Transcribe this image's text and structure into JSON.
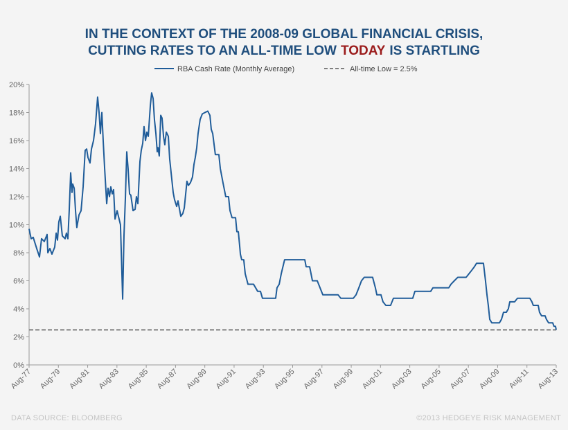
{
  "chart_data": {
    "type": "line",
    "title": {
      "line1": "IN THE CONTEXT OF THE 2008-09 GLOBAL FINANCIAL CRISIS,",
      "line2": [
        "CUTTING RATES TO AN ALL-TIME LOW",
        "TODAY",
        "IS STARTLING"
      ]
    },
    "series": [
      {
        "name": "RBA Cash Rate (Monthly Average)",
        "color": "#1f5c99",
        "x": [
          1977.58,
          1977.72,
          1977.86,
          1978.1,
          1978.29,
          1978.43,
          1978.62,
          1978.81,
          1978.86,
          1979.0,
          1979.14,
          1979.33,
          1979.43,
          1979.52,
          1979.61,
          1979.71,
          1979.85,
          1980.04,
          1980.13,
          1980.23,
          1980.32,
          1980.42,
          1980.51,
          1980.56,
          1980.66,
          1980.75,
          1980.84,
          1980.99,
          1981.13,
          1981.27,
          1981.41,
          1981.51,
          1981.6,
          1981.74,
          1981.84,
          1981.98,
          1982.12,
          1982.26,
          1982.36,
          1982.45,
          1982.55,
          1982.64,
          1982.74,
          1982.88,
          1982.97,
          1983.07,
          1983.16,
          1983.26,
          1983.35,
          1983.45,
          1983.59,
          1983.82,
          1983.97,
          1984.06,
          1984.16,
          1984.25,
          1984.34,
          1984.44,
          1984.53,
          1984.68,
          1984.82,
          1984.91,
          1985.01,
          1985.15,
          1985.24,
          1985.34,
          1985.43,
          1985.53,
          1985.62,
          1985.72,
          1985.86,
          1985.95,
          1986.05,
          1986.14,
          1986.24,
          1986.33,
          1986.38,
          1986.47,
          1986.57,
          1986.66,
          1986.76,
          1986.85,
          1986.95,
          1987.09,
          1987.18,
          1987.32,
          1987.42,
          1987.51,
          1987.66,
          1987.75,
          1987.94,
          1988.08,
          1988.18,
          1988.36,
          1988.46,
          1988.6,
          1988.74,
          1988.84,
          1988.93,
          1989.03,
          1989.12,
          1989.26,
          1989.41,
          1989.59,
          1989.78,
          1989.93,
          1990.02,
          1990.12,
          1990.3,
          1990.54,
          1990.64,
          1990.82,
          1991.01,
          1991.2,
          1991.3,
          1991.44,
          1991.68,
          1991.77,
          1991.87,
          1991.96,
          1992.01,
          1992.1,
          1992.24,
          1992.34,
          1992.53,
          1992.91,
          1993.19,
          1993.38,
          1993.52,
          1994.42,
          1994.51,
          1994.66,
          1994.8,
          1995.03,
          1996.41,
          1996.5,
          1996.74,
          1996.93,
          1997.26,
          1997.45,
          1997.64,
          1998.68,
          1998.87,
          1999.72,
          1999.91,
          2000.1,
          2000.28,
          2000.47,
          2001.04,
          2001.23,
          2001.33,
          2001.61,
          2001.75,
          2001.94,
          2002.27,
          2002.46,
          2003.78,
          2003.93,
          2005.01,
          2005.16,
          2006.24,
          2006.39,
          2006.62,
          2006.86,
          2007.43,
          2007.62,
          2007.81,
          2007.99,
          2008.14,
          2008.61,
          2008.75,
          2008.85,
          2008.94,
          2009.04,
          2009.18,
          2009.7,
          2009.84,
          2009.98,
          2010.17,
          2010.31,
          2010.41,
          2010.74,
          2010.93,
          2011.78,
          2011.92,
          2012.01,
          2012.35,
          2012.44,
          2012.58,
          2012.82,
          2012.91,
          2013.06,
          2013.34,
          2013.43,
          2013.53,
          2013.58
        ],
        "values": [
          9.7,
          9.0,
          9.1,
          8.3,
          7.7,
          9.0,
          8.8,
          9.3,
          8.0,
          8.3,
          7.9,
          8.4,
          9.4,
          8.9,
          10.2,
          10.6,
          9.2,
          9.0,
          9.4,
          9.0,
          11.0,
          13.7,
          12.3,
          12.9,
          12.6,
          11.0,
          9.8,
          10.7,
          11.0,
          12.7,
          15.3,
          15.4,
          14.8,
          14.4,
          15.4,
          16.0,
          17.2,
          19.1,
          18.0,
          16.5,
          18.0,
          16.0,
          14.0,
          11.5,
          12.6,
          12.0,
          12.7,
          12.2,
          12.5,
          10.4,
          11.0,
          10.0,
          4.7,
          9.2,
          12.0,
          15.2,
          14.0,
          12.2,
          12.1,
          11.0,
          11.1,
          12.0,
          11.5,
          14.5,
          15.3,
          15.8,
          17.0,
          16.0,
          16.6,
          16.3,
          18.5,
          19.4,
          19.0,
          17.5,
          16.5,
          15.2,
          15.5,
          14.9,
          17.8,
          17.6,
          16.3,
          15.7,
          16.6,
          16.3,
          14.7,
          13.3,
          12.3,
          11.8,
          11.3,
          11.7,
          10.6,
          10.8,
          11.2,
          13.1,
          12.8,
          13.0,
          13.4,
          14.3,
          14.8,
          15.5,
          16.5,
          17.5,
          17.9,
          18.0,
          18.1,
          17.8,
          16.8,
          16.5,
          15.0,
          15.0,
          14.0,
          13.0,
          12.0,
          12.0,
          11.0,
          10.5,
          10.5,
          9.5,
          9.5,
          8.5,
          7.9,
          7.5,
          7.5,
          6.5,
          5.75,
          5.75,
          5.25,
          5.25,
          4.75,
          4.75,
          5.5,
          5.75,
          6.5,
          7.5,
          7.5,
          7.0,
          7.0,
          6.0,
          6.0,
          5.5,
          5.0,
          5.0,
          4.75,
          4.75,
          5.0,
          5.5,
          6.0,
          6.25,
          6.25,
          5.5,
          5.0,
          5.0,
          4.5,
          4.25,
          4.25,
          4.75,
          4.75,
          5.25,
          5.25,
          5.5,
          5.5,
          5.75,
          6.0,
          6.25,
          6.25,
          6.5,
          6.75,
          7.0,
          7.25,
          7.25,
          6.0,
          5.0,
          4.25,
          3.25,
          3.0,
          3.0,
          3.25,
          3.75,
          3.75,
          4.0,
          4.5,
          4.5,
          4.75,
          4.75,
          4.5,
          4.25,
          4.25,
          3.75,
          3.5,
          3.5,
          3.25,
          3.0,
          3.0,
          2.75,
          2.75,
          2.5
        ]
      }
    ],
    "reference_line": {
      "name": "All-time Low = 2.5%",
      "value": 2.5,
      "color": "#7f7f7f"
    },
    "xlim": [
      1977.58,
      2013.58
    ],
    "xticks": [
      {
        "value": 1977.58,
        "label": "Aug-77"
      },
      {
        "value": 1979.58,
        "label": "Aug-79"
      },
      {
        "value": 1981.58,
        "label": "Aug-81"
      },
      {
        "value": 1983.58,
        "label": "Aug-83"
      },
      {
        "value": 1985.58,
        "label": "Aug-85"
      },
      {
        "value": 1987.58,
        "label": "Aug-87"
      },
      {
        "value": 1989.58,
        "label": "Aug-89"
      },
      {
        "value": 1991.58,
        "label": "Aug-91"
      },
      {
        "value": 1993.58,
        "label": "Aug-93"
      },
      {
        "value": 1995.58,
        "label": "Aug-95"
      },
      {
        "value": 1997.58,
        "label": "Aug-97"
      },
      {
        "value": 1999.58,
        "label": "Aug-99"
      },
      {
        "value": 2001.58,
        "label": "Aug-01"
      },
      {
        "value": 2003.58,
        "label": "Aug-03"
      },
      {
        "value": 2005.58,
        "label": "Aug-05"
      },
      {
        "value": 2007.58,
        "label": "Aug-07"
      },
      {
        "value": 2009.58,
        "label": "Aug-09"
      },
      {
        "value": 2011.58,
        "label": "Aug-11"
      },
      {
        "value": 2013.58,
        "label": "Aug-13"
      }
    ],
    "ylim": [
      0,
      20
    ],
    "yticks": [
      {
        "value": 0,
        "label": "0%"
      },
      {
        "value": 2,
        "label": "2%"
      },
      {
        "value": 4,
        "label": "4%"
      },
      {
        "value": 6,
        "label": "6%"
      },
      {
        "value": 8,
        "label": "8%"
      },
      {
        "value": 10,
        "label": "10%"
      },
      {
        "value": 12,
        "label": "12%"
      },
      {
        "value": 14,
        "label": "14%"
      },
      {
        "value": 16,
        "label": "16%"
      },
      {
        "value": 18,
        "label": "18%"
      },
      {
        "value": 20,
        "label": "20%"
      }
    ],
    "source": "DATA SOURCE:  BLOOMBERG",
    "credit": "©2013 HEDGEYE  RISK MANAGEMENT"
  }
}
